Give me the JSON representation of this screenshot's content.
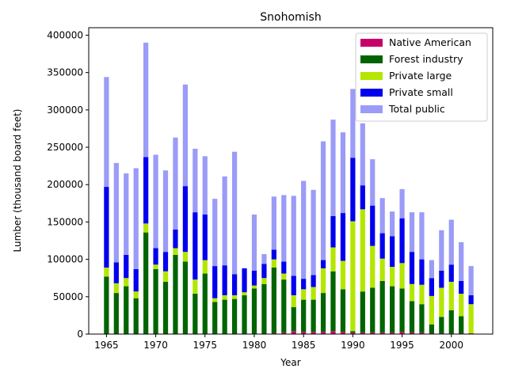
{
  "chart_data": {
    "type": "bar",
    "stacked": true,
    "title": "Snohomish",
    "xlabel": "Year",
    "ylabel": "Lumber (thousand board feet)",
    "xlim": [
      1963.2,
      2004.2
    ],
    "ylim": [
      0,
      410000
    ],
    "xticks": [
      1965,
      1970,
      1975,
      1980,
      1985,
      1990,
      1995,
      2000
    ],
    "yticks": [
      0,
      50000,
      100000,
      150000,
      200000,
      250000,
      300000,
      350000,
      400000
    ],
    "grid": false,
    "legend_position": "top-right",
    "x": [
      1965,
      1966,
      1967,
      1968,
      1969,
      1970,
      1971,
      1972,
      1973,
      1974,
      1975,
      1976,
      1977,
      1978,
      1979,
      1980,
      1981,
      1982,
      1983,
      1984,
      1985,
      1986,
      1987,
      1988,
      1989,
      1990,
      1991,
      1992,
      1993,
      1994,
      1995,
      1996,
      1997,
      1998,
      1999,
      2000,
      2001,
      2002
    ],
    "series": [
      {
        "name": "Native American",
        "color": "#c8006a",
        "values": [
          0,
          0,
          0,
          0,
          0,
          0,
          0,
          0,
          0,
          0,
          0,
          0,
          0,
          0,
          0,
          0,
          0,
          1000,
          2000,
          4000,
          3000,
          3000,
          3000,
          4000,
          3000,
          2000,
          2000,
          2000,
          2000,
          2000,
          3000,
          2000,
          2000,
          1000,
          1000,
          1000,
          1000,
          1000
        ]
      },
      {
        "name": "Forest industry",
        "color": "#006400",
        "values": [
          77000,
          55000,
          64000,
          48000,
          136000,
          87000,
          70000,
          106000,
          97000,
          54000,
          81000,
          43000,
          46000,
          47000,
          52000,
          61000,
          67000,
          88000,
          71000,
          32000,
          43000,
          43000,
          52000,
          80000,
          57000,
          2000,
          55000,
          60000,
          69000,
          62000,
          58000,
          42000,
          38000,
          12000,
          22000,
          31000,
          23000,
          0
        ]
      },
      {
        "name": "Private large",
        "color": "#b4e600",
        "values": [
          12000,
          13000,
          11000,
          9000,
          12000,
          6000,
          14000,
          9000,
          13000,
          19000,
          18000,
          5000,
          6000,
          5000,
          4000,
          4000,
          8000,
          11000,
          8000,
          16000,
          14000,
          17000,
          33000,
          32000,
          38000,
          147000,
          110000,
          56000,
          30000,
          26000,
          34000,
          23000,
          26000,
          38000,
          39000,
          38000,
          30000,
          39000
        ]
      },
      {
        "name": "Private small",
        "color": "#0000ee",
        "values": [
          108000,
          28000,
          31000,
          30000,
          89000,
          22000,
          26000,
          25000,
          88000,
          90000,
          61000,
          43000,
          40000,
          28000,
          32000,
          20000,
          19000,
          13000,
          16000,
          26000,
          14000,
          16000,
          11000,
          42000,
          64000,
          85000,
          32000,
          54000,
          34000,
          41000,
          60000,
          43000,
          34000,
          24000,
          23000,
          23000,
          17000,
          12000
        ]
      },
      {
        "name": "Total public",
        "color": "#9b9bf8",
        "values": [
          147000,
          133000,
          109000,
          135000,
          153000,
          125000,
          109000,
          123000,
          136000,
          85000,
          78000,
          90000,
          119000,
          164000,
          0,
          75000,
          13000,
          71000,
          89000,
          107000,
          131000,
          114000,
          159000,
          129000,
          108000,
          92000,
          83000,
          62000,
          47000,
          33000,
          39000,
          53000,
          63000,
          24000,
          54000,
          60000,
          52000,
          39000
        ]
      }
    ]
  }
}
